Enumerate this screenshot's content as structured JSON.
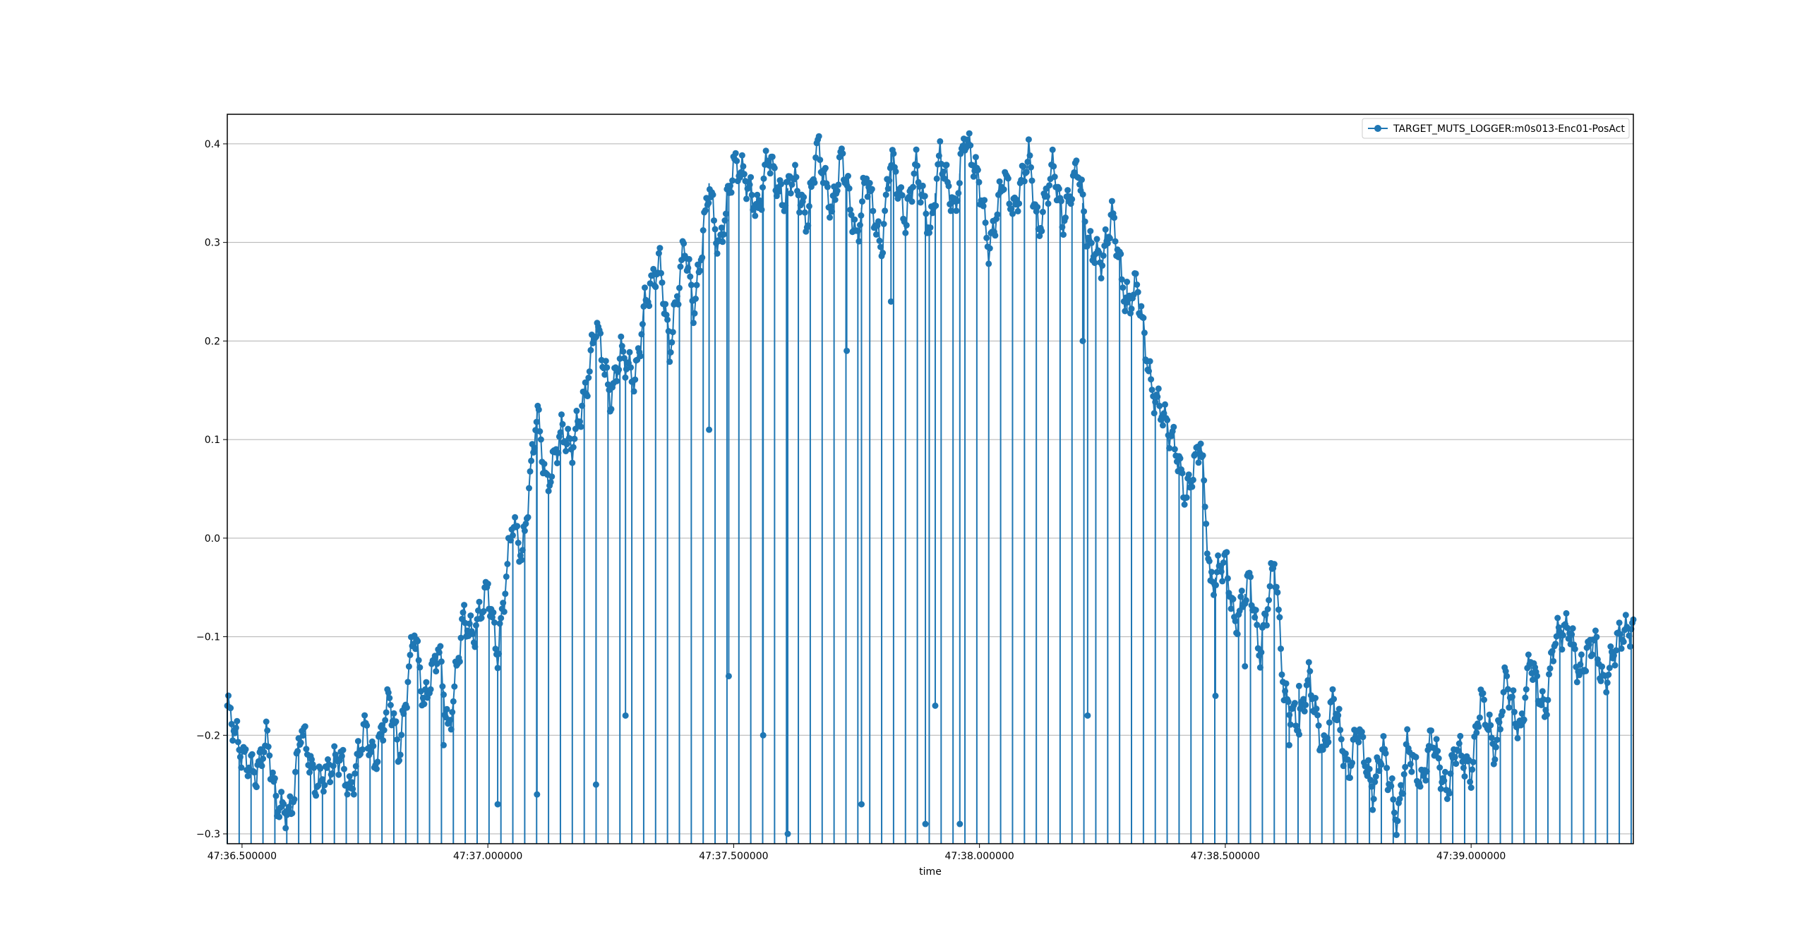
{
  "chart_data": {
    "type": "line",
    "title": "",
    "xlabel": "time",
    "ylabel": "",
    "x_ticks": [
      "47:36.500000",
      "47:37.000000",
      "47:37.500000",
      "47:38.000000",
      "47:38.500000",
      "47:39.000000"
    ],
    "y_ticks": [
      "0.4",
      "0.3",
      "0.2",
      "0.1",
      "0.0",
      "−0.1",
      "−0.2",
      "−0.3"
    ],
    "xlim_seconds": [
      36.47,
      39.33
    ],
    "ylim": [
      -0.31,
      0.43
    ],
    "grid": "horizontal",
    "legend_position": "top-right",
    "series": [
      {
        "name": "TARGET_MUTS_LOGGER:m0s013-Enc01-PosAct",
        "color": "#1f77b4",
        "marker": "circle",
        "x_seconds": [
          36.47,
          36.5,
          36.53,
          36.55,
          36.57,
          36.6,
          36.62,
          36.65,
          36.67,
          36.7,
          36.72,
          36.75,
          36.77,
          36.8,
          36.82,
          36.85,
          36.87,
          36.9,
          36.92,
          36.95,
          36.97,
          37.0,
          37.02,
          37.05,
          37.07,
          37.1,
          37.12,
          37.15,
          37.17,
          37.2,
          37.22,
          37.25,
          37.27,
          37.3,
          37.32,
          37.35,
          37.37,
          37.4,
          37.42,
          37.45,
          37.47,
          37.5,
          37.52,
          37.55,
          37.57,
          37.6,
          37.62,
          37.65,
          37.67,
          37.7,
          37.72,
          37.75,
          37.77,
          37.8,
          37.82,
          37.85,
          37.87,
          37.9,
          37.92,
          37.95,
          37.97,
          38.0,
          38.02,
          38.05,
          38.07,
          38.1,
          38.12,
          38.15,
          38.17,
          38.2,
          38.22,
          38.25,
          38.27,
          38.3,
          38.32,
          38.35,
          38.37,
          38.4,
          38.42,
          38.45,
          38.47,
          38.5,
          38.52,
          38.55,
          38.57,
          38.6,
          38.62,
          38.65,
          38.67,
          38.7,
          38.72,
          38.75,
          38.77,
          38.8,
          38.82,
          38.85,
          38.87,
          38.9,
          38.92,
          38.95,
          38.97,
          39.0,
          39.02,
          39.05,
          39.07,
          39.1,
          39.12,
          39.15,
          39.17,
          39.2,
          39.22,
          39.25,
          39.27,
          39.3,
          39.33
        ],
        "values": [
          -0.17,
          -0.22,
          -0.24,
          -0.2,
          -0.27,
          -0.28,
          -0.19,
          -0.25,
          -0.24,
          -0.22,
          -0.26,
          -0.19,
          -0.23,
          -0.16,
          -0.22,
          -0.09,
          -0.17,
          -0.11,
          -0.2,
          -0.08,
          -0.1,
          -0.05,
          -0.12,
          0.02,
          -0.02,
          0.13,
          0.05,
          0.11,
          0.09,
          0.15,
          0.22,
          0.14,
          0.19,
          0.16,
          0.24,
          0.28,
          0.19,
          0.3,
          0.23,
          0.36,
          0.29,
          0.38,
          0.37,
          0.33,
          0.39,
          0.34,
          0.37,
          0.32,
          0.4,
          0.33,
          0.39,
          0.3,
          0.37,
          0.29,
          0.39,
          0.32,
          0.38,
          0.31,
          0.39,
          0.33,
          0.41,
          0.36,
          0.29,
          0.37,
          0.33,
          0.39,
          0.31,
          0.38,
          0.32,
          0.38,
          0.3,
          0.28,
          0.33,
          0.23,
          0.26,
          0.15,
          0.13,
          0.09,
          0.04,
          0.1,
          -0.05,
          -0.02,
          -0.09,
          -0.04,
          -0.12,
          -0.02,
          -0.16,
          -0.19,
          -0.14,
          -0.22,
          -0.16,
          -0.24,
          -0.19,
          -0.26,
          -0.21,
          -0.29,
          -0.21,
          -0.25,
          -0.2,
          -0.26,
          -0.21,
          -0.24,
          -0.16,
          -0.22,
          -0.14,
          -0.2,
          -0.12,
          -0.18,
          -0.1,
          -0.09,
          -0.14,
          -0.1,
          -0.15,
          -0.1,
          -0.09
        ]
      }
    ],
    "dips": [
      {
        "x_seconds": 36.91,
        "value": -0.21
      },
      {
        "x_seconds": 37.02,
        "value": -0.27
      },
      {
        "x_seconds": 37.1,
        "value": -0.26
      },
      {
        "x_seconds": 37.22,
        "value": -0.25
      },
      {
        "x_seconds": 37.28,
        "value": -0.18
      },
      {
        "x_seconds": 37.45,
        "value": 0.11
      },
      {
        "x_seconds": 37.49,
        "value": -0.14
      },
      {
        "x_seconds": 37.56,
        "value": -0.2
      },
      {
        "x_seconds": 37.61,
        "value": -0.3
      },
      {
        "x_seconds": 37.73,
        "value": 0.19
      },
      {
        "x_seconds": 37.76,
        "value": -0.27
      },
      {
        "x_seconds": 37.82,
        "value": 0.24
      },
      {
        "x_seconds": 37.89,
        "value": -0.29
      },
      {
        "x_seconds": 37.91,
        "value": -0.17
      },
      {
        "x_seconds": 37.96,
        "value": -0.29
      },
      {
        "x_seconds": 38.21,
        "value": 0.2
      },
      {
        "x_seconds": 38.22,
        "value": -0.18
      },
      {
        "x_seconds": 38.3,
        "value": 0.26
      },
      {
        "x_seconds": 38.48,
        "value": -0.16
      },
      {
        "x_seconds": 38.54,
        "value": -0.13
      },
      {
        "x_seconds": 38.63,
        "value": -0.21
      },
      {
        "x_seconds": 38.65,
        "value": -0.15
      }
    ]
  }
}
